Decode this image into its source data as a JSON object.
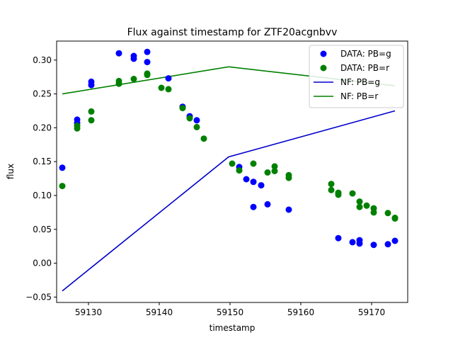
{
  "chart_data": {
    "type": "scatter",
    "title": "Flux against timestamp for ZTF20acgnbvv",
    "xlabel": "timestamp",
    "ylabel": "flux",
    "xlim": [
      59125.5,
      59175.1
    ],
    "ylim": [
      -0.058,
      0.328
    ],
    "xticks": [
      59130,
      59140,
      59150,
      59160,
      59170
    ],
    "yticks": [
      -0.05,
      0.0,
      0.05,
      0.1,
      0.15,
      0.2,
      0.25,
      0.3
    ],
    "ytick_labels": [
      "−0.05",
      "0.00",
      "0.05",
      "0.10",
      "0.15",
      "0.20",
      "0.25",
      "0.30"
    ],
    "grid": false,
    "legend_position": "upper-right",
    "series": [
      {
        "name": "DATA: PB=g",
        "kind": "scatter",
        "color": "#0000ff",
        "points": [
          [
            59126.3,
            0.141
          ],
          [
            59128.4,
            0.212
          ],
          [
            59128.4,
            0.207
          ],
          [
            59130.4,
            0.268
          ],
          [
            59130.4,
            0.263
          ],
          [
            59134.3,
            0.31
          ],
          [
            59136.4,
            0.306
          ],
          [
            59136.4,
            0.302
          ],
          [
            59138.3,
            0.312
          ],
          [
            59138.3,
            0.297
          ],
          [
            59141.3,
            0.273
          ],
          [
            59143.3,
            0.231
          ],
          [
            59144.3,
            0.217
          ],
          [
            59145.3,
            0.211
          ],
          [
            59151.3,
            0.142
          ],
          [
            59152.3,
            0.124
          ],
          [
            59153.3,
            0.12
          ],
          [
            59153.3,
            0.083
          ],
          [
            59154.4,
            0.115
          ],
          [
            59155.3,
            0.087
          ],
          [
            59158.3,
            0.079
          ],
          [
            59165.3,
            0.037
          ],
          [
            59167.3,
            0.031
          ],
          [
            59168.3,
            0.034
          ],
          [
            59168.3,
            0.029
          ],
          [
            59170.3,
            0.027
          ],
          [
            59172.3,
            0.028
          ],
          [
            59173.3,
            0.033
          ]
        ]
      },
      {
        "name": "DATA: PB=r",
        "kind": "scatter",
        "color": "#008000",
        "points": [
          [
            59126.3,
            0.114
          ],
          [
            59128.4,
            0.203
          ],
          [
            59128.4,
            0.199
          ],
          [
            59130.4,
            0.224
          ],
          [
            59130.4,
            0.211
          ],
          [
            59134.3,
            0.269
          ],
          [
            59134.3,
            0.265
          ],
          [
            59136.4,
            0.272
          ],
          [
            59138.3,
            0.28
          ],
          [
            59138.3,
            0.278
          ],
          [
            59140.3,
            0.259
          ],
          [
            59141.3,
            0.257
          ],
          [
            59143.3,
            0.229
          ],
          [
            59144.3,
            0.214
          ],
          [
            59145.3,
            0.201
          ],
          [
            59146.3,
            0.184
          ],
          [
            59150.3,
            0.147
          ],
          [
            59151.3,
            0.137
          ],
          [
            59153.3,
            0.147
          ],
          [
            59155.3,
            0.134
          ],
          [
            59156.3,
            0.143
          ],
          [
            59156.3,
            0.136
          ],
          [
            59158.3,
            0.13
          ],
          [
            59158.3,
            0.126
          ],
          [
            59164.3,
            0.117
          ],
          [
            59164.3,
            0.108
          ],
          [
            59165.3,
            0.104
          ],
          [
            59165.3,
            0.101
          ],
          [
            59167.3,
            0.103
          ],
          [
            59168.3,
            0.091
          ],
          [
            59168.3,
            0.083
          ],
          [
            59169.3,
            0.085
          ],
          [
            59170.3,
            0.081
          ],
          [
            59170.3,
            0.075
          ],
          [
            59172.3,
            0.074
          ],
          [
            59173.3,
            0.067
          ],
          [
            59173.3,
            0.066
          ]
        ]
      },
      {
        "name": "NF: PB=g",
        "kind": "line",
        "color": "#0000cc",
        "points": [
          [
            59126.3,
            -0.041
          ],
          [
            59149.8,
            0.157
          ],
          [
            59173.3,
            0.225
          ]
        ]
      },
      {
        "name": "NF: PB=r",
        "kind": "line",
        "color": "#008000",
        "points": [
          [
            59126.3,
            0.25
          ],
          [
            59149.8,
            0.29
          ],
          [
            59173.3,
            0.262
          ]
        ]
      }
    ]
  }
}
